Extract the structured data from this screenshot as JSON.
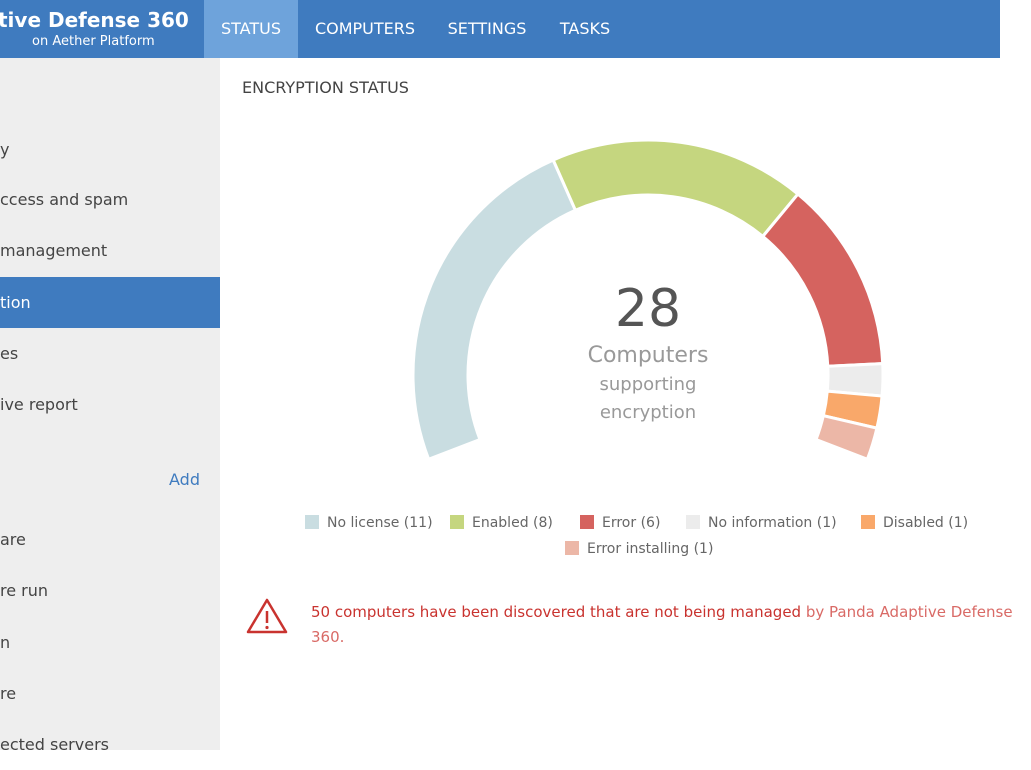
{
  "header": {
    "logo_title": "tive Defense 360",
    "logo_subtitle": "on Aether Platform",
    "tabs": [
      "STATUS",
      "COMPUTERS",
      "SETTINGS",
      "TASKS"
    ]
  },
  "sidebar": {
    "items": [
      "y",
      "ccess and spam",
      "management",
      "tion",
      "es",
      "ive report"
    ],
    "add": "Add",
    "items2": [
      "are",
      "re run",
      "n",
      "re",
      "ected servers"
    ]
  },
  "panel": {
    "title": "ENCRYPTION STATUS",
    "chart_data": {
      "type": "donut",
      "center_value": "28",
      "center_lines": [
        "Computers",
        "supporting",
        "encryption"
      ],
      "categories": [
        "No license (11)",
        "Enabled (8)",
        "Error (6)",
        "No information (1)",
        "Disabled (1)",
        "Error installing (1)"
      ],
      "values": [
        11,
        8,
        6,
        1,
        1,
        1
      ],
      "colors": [
        "#c9dde1",
        "#c5d67f",
        "#d5635f",
        "#ececec",
        "#f9a86a",
        "#ecb7a7"
      ]
    },
    "alert": {
      "text_strong": "50 computers have been discovered that are not being managed",
      "text_rest": " by Panda Adaptive Defense 360."
    }
  }
}
